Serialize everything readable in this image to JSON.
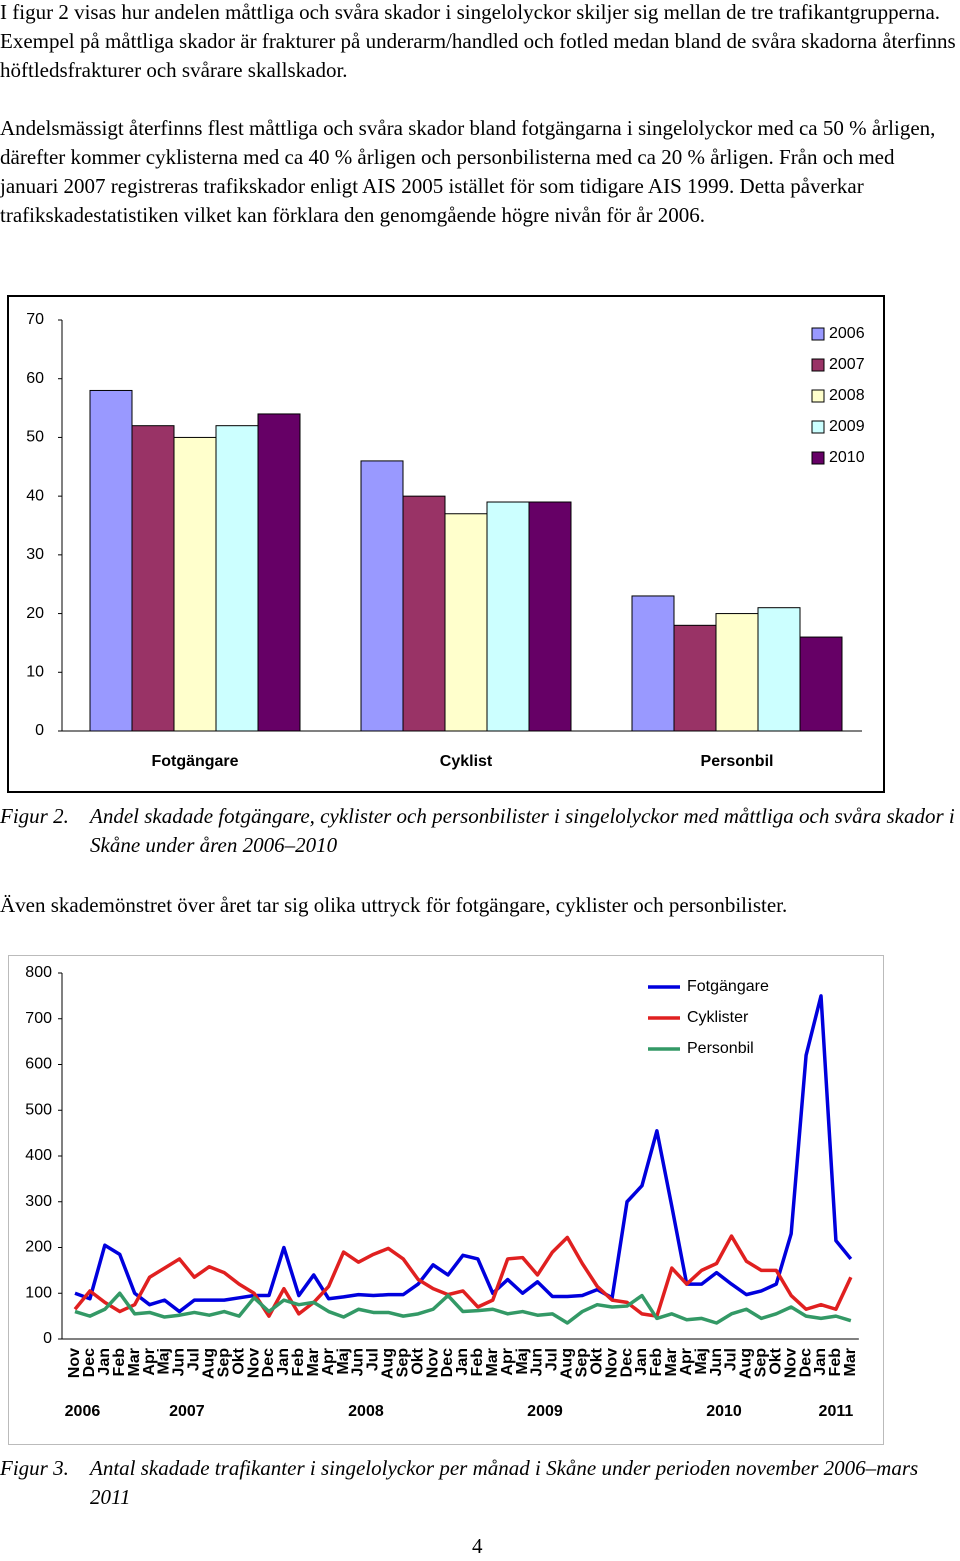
{
  "paragraphs": [
    "I figur 2 visas hur andelen måttliga och svåra skador i singelolyckor skiljer sig mellan de tre trafikantgrupperna. Exempel på måttliga skador är frakturer på underarm/handled och fotled medan bland de svåra skadorna återfinns höftledsfrakturer och svårare skallskador.",
    "Andelsmässigt återfinns flest måttliga och svåra skador bland fotgängarna i singelolyckor med ca 50 % årligen, därefter kommer cyklisterna med ca 40 % årligen och personbilisterna med ca 20 % årligen. Från och med januari 2007 registreras trafikskador enligt AIS 2005 istället för som tidigare AIS 1999. Detta påverkar trafikskadestatistiken vilket kan förklara den genomgående högre nivån för år 2006.",
    "Även skademönstret över året tar sig olika uttryck för fotgängare, cyklister och personbilister."
  ],
  "captions": [
    {
      "label": "Figur 2.",
      "text": "Andel skadade fotgängare, cyklister och personbilister i singelolyckor med måttliga och svåra skador i Skåne under åren 2006–2010"
    },
    {
      "label": "Figur 3.",
      "text": "Antal skadade trafikanter i singelolyckor per månad i Skåne under perioden november 2006–mars 2011"
    }
  ],
  "page_number": "4",
  "chart_data": [
    {
      "type": "bar",
      "categories": [
        "Fotgängare",
        "Cyklist",
        "Personbil"
      ],
      "series": [
        {
          "name": "2006",
          "color": "#9999ff",
          "values": [
            58,
            46,
            23
          ]
        },
        {
          "name": "2007",
          "color": "#993366",
          "values": [
            52,
            40,
            18
          ]
        },
        {
          "name": "2008",
          "color": "#ffffcc",
          "values": [
            50,
            37,
            20
          ]
        },
        {
          "name": "2009",
          "color": "#ccffff",
          "values": [
            52,
            39,
            21
          ]
        },
        {
          "name": "2010",
          "color": "#660066",
          "values": [
            54,
            39,
            16
          ]
        }
      ],
      "ylim": [
        0,
        70
      ],
      "yticks": [
        0,
        10,
        20,
        30,
        40,
        50,
        60,
        70
      ],
      "grid": false,
      "legend": "top-right"
    },
    {
      "type": "line",
      "categories": [
        "Nov",
        "Dec",
        "Jan",
        "Feb",
        "Mar",
        "Apr",
        "Maj",
        "Jun",
        "Jul",
        "Aug",
        "Sep",
        "Okt",
        "Nov",
        "Dec",
        "Jan",
        "Feb",
        "Mar",
        "Apr",
        "Maj",
        "Jun",
        "Jul",
        "Aug",
        "Sep",
        "Okt",
        "Nov",
        "Dec",
        "Jan",
        "Feb",
        "Mar",
        "Apr",
        "Maj",
        "Jun",
        "Jul",
        "Aug",
        "Sep",
        "Okt",
        "Nov",
        "Dec",
        "Jan",
        "Feb",
        "Mar",
        "Apr",
        "Maj",
        "Jun",
        "Jul",
        "Aug",
        "Sep",
        "Okt",
        "Nov",
        "Dec",
        "Jan",
        "Feb",
        "Mar"
      ],
      "year_labels": [
        "2006",
        "2007",
        "2008",
        "2009",
        "2010",
        "2011"
      ],
      "series": [
        {
          "name": "Fotgängare",
          "color": "#0000dd",
          "values": [
            100,
            88,
            205,
            185,
            100,
            75,
            85,
            60,
            85,
            85,
            85,
            90,
            95,
            95,
            200,
            95,
            140,
            88,
            92,
            97,
            95,
            97,
            97,
            120,
            162,
            140,
            183,
            175,
            100,
            130,
            100,
            125,
            93,
            93,
            95,
            108,
            90,
            300,
            335,
            455,
            290,
            120,
            120,
            145,
            120,
            97,
            105,
            120,
            230,
            620,
            750,
            215,
            175
          ]
        },
        {
          "name": "Cyklister",
          "color": "#e02020",
          "values": [
            65,
            105,
            80,
            60,
            75,
            135,
            155,
            175,
            135,
            158,
            145,
            120,
            100,
            50,
            110,
            55,
            80,
            115,
            190,
            168,
            185,
            198,
            175,
            130,
            110,
            97,
            105,
            70,
            85,
            175,
            178,
            140,
            190,
            222,
            165,
            115,
            85,
            80,
            55,
            50,
            155,
            120,
            150,
            165,
            225,
            170,
            150,
            150,
            95,
            65,
            75,
            65,
            135
          ]
        },
        {
          "name": "Personbil",
          "color": "#339966",
          "values": [
            60,
            50,
            65,
            100,
            55,
            58,
            48,
            52,
            58,
            52,
            60,
            50,
            90,
            60,
            85,
            75,
            80,
            60,
            48,
            65,
            58,
            58,
            50,
            55,
            65,
            95,
            60,
            62,
            65,
            55,
            60,
            52,
            55,
            35,
            60,
            75,
            70,
            72,
            95,
            45,
            55,
            42,
            45,
            35,
            55,
            65,
            45,
            55,
            70,
            50,
            45,
            50,
            40
          ]
        }
      ],
      "ylim": [
        0,
        800
      ],
      "yticks": [
        0,
        100,
        200,
        300,
        400,
        500,
        600,
        700,
        800
      ],
      "grid": false,
      "legend": "top-right"
    }
  ]
}
